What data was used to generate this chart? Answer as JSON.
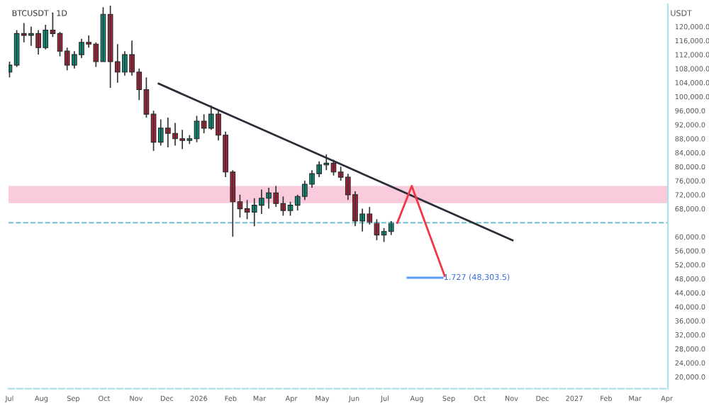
{
  "chart_data": {
    "type": "candlestick",
    "title": "BTCUSDT · 1D",
    "ylabel": "USDT",
    "x": [
      "2025-07-01",
      "2025-07-08",
      "2025-07-15",
      "2025-07-22",
      "2025-07-29",
      "2025-08-05",
      "2025-08-12",
      "2025-08-19",
      "2025-08-26",
      "2025-09-02",
      "2025-09-09",
      "2025-09-16",
      "2025-09-23",
      "2025-09-30",
      "2025-10-07",
      "2025-10-14",
      "2025-10-21",
      "2025-10-28",
      "2025-11-04",
      "2025-11-11",
      "2025-11-18",
      "2025-11-25",
      "2025-12-02",
      "2025-12-09",
      "2025-12-16",
      "2025-12-23",
      "2025-12-30",
      "2026-01-06",
      "2026-01-13",
      "2026-01-20",
      "2026-01-27",
      "2026-02-03",
      "2026-02-10",
      "2026-02-17",
      "2026-02-24",
      "2026-03-03",
      "2026-03-10",
      "2026-03-17",
      "2026-03-24",
      "2026-03-31",
      "2026-04-07",
      "2026-04-14",
      "2026-04-21",
      "2026-04-28",
      "2026-05-05",
      "2026-05-12",
      "2026-05-19",
      "2026-05-26",
      "2026-06-02",
      "2026-06-09",
      "2026-06-16",
      "2026-06-23",
      "2026-06-30",
      "2026-07-07"
    ],
    "ohlc": [
      [
        107000,
        110000,
        105500,
        109000
      ],
      [
        109000,
        119000,
        108500,
        118000
      ],
      [
        118000,
        121000,
        115500,
        117500
      ],
      [
        117500,
        120000,
        114500,
        118000
      ],
      [
        118000,
        119000,
        112000,
        114000
      ],
      [
        114000,
        120500,
        113500,
        119000
      ],
      [
        119000,
        124000,
        117000,
        118000
      ],
      [
        118000,
        118500,
        111500,
        113000
      ],
      [
        113000,
        114000,
        107500,
        109000
      ],
      [
        109000,
        113000,
        108000,
        112000
      ],
      [
        112000,
        116500,
        111000,
        115500
      ],
      [
        115500,
        117500,
        114000,
        115000
      ],
      [
        115000,
        115500,
        108500,
        110000
      ],
      [
        110000,
        125500,
        110000,
        123500
      ],
      [
        123500,
        126000,
        102500,
        110000
      ],
      [
        110000,
        115000,
        104000,
        107000
      ],
      [
        107000,
        113000,
        106000,
        112000
      ],
      [
        112000,
        116000,
        106000,
        107000
      ],
      [
        107000,
        108000,
        99000,
        102000
      ],
      [
        102000,
        105500,
        94000,
        95000
      ],
      [
        95000,
        96000,
        84500,
        87000
      ],
      [
        87000,
        93500,
        86000,
        91000
      ],
      [
        91000,
        94000,
        85500,
        89500
      ],
      [
        89500,
        92500,
        86000,
        88000
      ],
      [
        88000,
        90500,
        85000,
        87500
      ],
      [
        87500,
        89000,
        86500,
        88000
      ],
      [
        88000,
        94500,
        87000,
        93000
      ],
      [
        93000,
        95000,
        89500,
        91000
      ],
      [
        91000,
        97500,
        90500,
        95000
      ],
      [
        95000,
        96000,
        87500,
        89000
      ],
      [
        89000,
        90000,
        77000,
        78500
      ],
      [
        78500,
        79000,
        60000,
        70000
      ],
      [
        70000,
        72000,
        65500,
        68000
      ],
      [
        68000,
        70500,
        65000,
        67000
      ],
      [
        67000,
        71000,
        63000,
        69000
      ],
      [
        69000,
        73500,
        66500,
        71000
      ],
      [
        71000,
        74000,
        68000,
        72500
      ],
      [
        72500,
        74500,
        68500,
        69500
      ],
      [
        69500,
        71500,
        66000,
        67500
      ],
      [
        67500,
        70000,
        66000,
        69000
      ],
      [
        69000,
        72000,
        67500,
        71500
      ],
      [
        71500,
        76000,
        70500,
        75000
      ],
      [
        75000,
        79000,
        74000,
        78000
      ],
      [
        78000,
        81500,
        77000,
        80500
      ],
      [
        80500,
        83500,
        79000,
        81000
      ],
      [
        81000,
        82000,
        77500,
        78500
      ],
      [
        78500,
        80000,
        76000,
        77000
      ],
      [
        77000,
        78000,
        70500,
        72000
      ],
      [
        72000,
        73000,
        63000,
        64500
      ],
      [
        64500,
        68000,
        61500,
        66500
      ],
      [
        66500,
        68500,
        63500,
        64000
      ],
      [
        64000,
        65000,
        59000,
        60500
      ],
      [
        60500,
        62500,
        58500,
        61500
      ],
      [
        61500,
        64500,
        60500,
        64000
      ]
    ],
    "series": [
      {
        "type": "line",
        "color": "#2a2e39",
        "x": [
          "2025-11-23",
          "2026-11-02"
        ],
        "values": [
          103700,
          59000
        ]
      },
      {
        "type": "line",
        "color": "#f23645",
        "x": [
          "2026-07-13",
          "2026-07-27",
          "2026-08-28"
        ],
        "values": [
          64000,
          74500,
          48800
        ]
      },
      {
        "type": "line",
        "color": "#5b9cf6",
        "x": [
          "2026-07-23",
          "2026-08-26"
        ],
        "values": [
          48300,
          48300
        ]
      }
    ],
    "annotations": [
      {
        "text": "1.727 (48,303.5)",
        "x": "2026-08-27",
        "y": 48303.5
      }
    ],
    "bands": [
      {
        "axis": "y",
        "from": 69600,
        "to": 74500,
        "color": "#f7a8c4"
      }
    ],
    "ref_lines": [
      {
        "axis": "y",
        "value": 64000,
        "color": "#5fb8c9",
        "line_style": "dashed"
      }
    ],
    "xlim": [
      "2025-06-30",
      "2027-04-02"
    ],
    "xticks": [
      {
        "value": "2025-07-01",
        "label": "Jul"
      },
      {
        "value": "2025-08-01",
        "label": "Aug"
      },
      {
        "value": "2025-09-01",
        "label": "Sep"
      },
      {
        "value": "2025-10-01",
        "label": "Oct"
      },
      {
        "value": "2025-11-01",
        "label": "Nov"
      },
      {
        "value": "2025-12-01",
        "label": "Dec"
      },
      {
        "value": "2026-01-01",
        "label": "2026"
      },
      {
        "value": "2026-02-01",
        "label": "Feb"
      },
      {
        "value": "2026-03-01",
        "label": "Mar"
      },
      {
        "value": "2026-04-01",
        "label": "Apr"
      },
      {
        "value": "2026-05-01",
        "label": "May"
      },
      {
        "value": "2026-06-01",
        "label": "Jun"
      },
      {
        "value": "2026-07-01",
        "label": "Jul"
      },
      {
        "value": "2026-08-01",
        "label": "Aug"
      },
      {
        "value": "2026-09-01",
        "label": "Sep"
      },
      {
        "value": "2026-10-01",
        "label": "Oct"
      },
      {
        "value": "2026-11-01",
        "label": "Nov"
      },
      {
        "value": "2026-12-01",
        "label": "Dec"
      },
      {
        "value": "2027-01-01",
        "label": "2027"
      },
      {
        "value": "2027-02-01",
        "label": "Feb"
      },
      {
        "value": "2027-03-01",
        "label": "Mar"
      },
      {
        "value": "2027-04-01",
        "label": "Apr"
      }
    ],
    "ylim": [
      16600,
      126400
    ],
    "yticks": [
      {
        "value": 20000,
        "label": "20,000.0"
      },
      {
        "value": 24000,
        "label": "24,000.0"
      },
      {
        "value": 28000,
        "label": "28,000.0"
      },
      {
        "value": 32000,
        "label": "32,000.0"
      },
      {
        "value": 36000,
        "label": "36,000.0"
      },
      {
        "value": 40000,
        "label": "40,000.0"
      },
      {
        "value": 44000,
        "label": "44,000.0"
      },
      {
        "value": 48000,
        "label": "48,000.0"
      },
      {
        "value": 52000,
        "label": "52,000.0"
      },
      {
        "value": 56000,
        "label": "56,000.0"
      },
      {
        "value": 60000,
        "label": "60,000.0"
      },
      {
        "value": 68000,
        "label": "68,000.0"
      },
      {
        "value": 72000,
        "label": "72,000.0"
      },
      {
        "value": 76000,
        "label": "76,000.0"
      },
      {
        "value": 80000,
        "label": "80,000.0"
      },
      {
        "value": 84000,
        "label": "84,000.0"
      },
      {
        "value": 88000,
        "label": "88,000.0"
      },
      {
        "value": 92000,
        "label": "92,000.0"
      },
      {
        "value": 96000,
        "label": "96,000.0"
      },
      {
        "value": 100000,
        "label": "100,000.0"
      },
      {
        "value": 104000,
        "label": "104,000.0"
      },
      {
        "value": 108000,
        "label": "108,000.0"
      },
      {
        "value": 112000,
        "label": "112,000.0"
      },
      {
        "value": 116000,
        "label": "116,000.0"
      },
      {
        "value": 120000,
        "label": "120,000.0"
      }
    ],
    "grid": false
  }
}
